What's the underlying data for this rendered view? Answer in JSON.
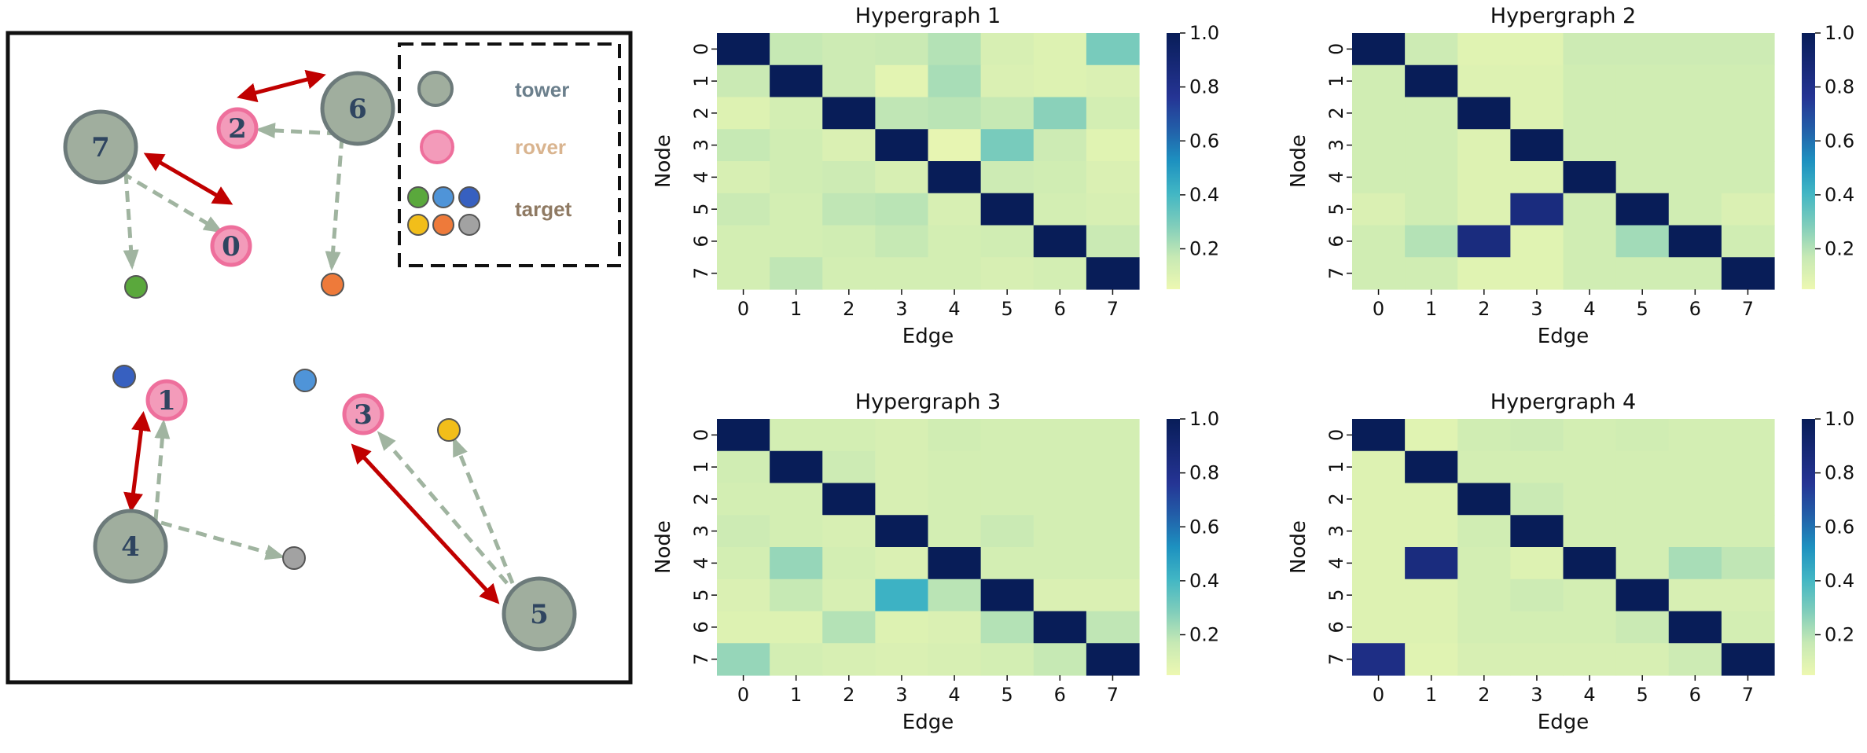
{
  "colors": {
    "tower_fill": "#a0ae9e",
    "tower_stroke": "#6c7a7a",
    "rover_fill": "#f39bba",
    "rover_stroke": "#ee6f9c",
    "communication_arrow": "#c00000",
    "observation_arrow": "#a0b4a0",
    "tower_label": "#6b7f8c",
    "rover_label": "#d9b48f",
    "target_label": "#8f7a63",
    "targets": [
      "#5aa83c",
      "#4f94d8",
      "#3760c0",
      "#f2be1a",
      "#ee7a3a",
      "#a2a2a2"
    ]
  },
  "scene": {
    "legend": {
      "tower_label": "tower",
      "rover_label": "rover",
      "target_label": "target"
    },
    "towers": [
      {
        "label": "7"
      },
      {
        "label": "6"
      },
      {
        "label": "4"
      },
      {
        "label": "5"
      }
    ],
    "rovers": [
      {
        "label": "2"
      },
      {
        "label": "0"
      },
      {
        "label": "1"
      },
      {
        "label": "3"
      }
    ],
    "targets": [
      {
        "color": "#5aa83c"
      },
      {
        "color": "#ee7a3a"
      },
      {
        "color": "#3760c0"
      },
      {
        "color": "#4f94d8"
      },
      {
        "color": "#f2be1a"
      },
      {
        "color": "#a2a2a2"
      }
    ]
  },
  "chart_data": [
    {
      "type": "heatmap",
      "title": "Hypergraph 1",
      "xlabel": "Edge",
      "ylabel": "Node",
      "x_ticks": [
        "0",
        "1",
        "2",
        "3",
        "4",
        "5",
        "6",
        "7"
      ],
      "y_ticks": [
        "0",
        "1",
        "2",
        "3",
        "4",
        "5",
        "6",
        "7"
      ],
      "colorbar_ticks": [
        "1.0",
        "0.8",
        "0.6",
        "0.4",
        "0.2"
      ],
      "colorbar_range": [
        0.05,
        1.0
      ],
      "values": [
        [
          1.0,
          0.17,
          0.15,
          0.16,
          0.2,
          0.12,
          0.1,
          0.3
        ],
        [
          0.16,
          1.0,
          0.15,
          0.08,
          0.22,
          0.11,
          0.1,
          0.11
        ],
        [
          0.1,
          0.13,
          1.0,
          0.18,
          0.19,
          0.17,
          0.27,
          0.13
        ],
        [
          0.17,
          0.14,
          0.11,
          1.0,
          0.07,
          0.3,
          0.15,
          0.09
        ],
        [
          0.12,
          0.14,
          0.15,
          0.12,
          1.0,
          0.15,
          0.14,
          0.11
        ],
        [
          0.16,
          0.13,
          0.18,
          0.19,
          0.12,
          1.0,
          0.13,
          0.12
        ],
        [
          0.13,
          0.13,
          0.14,
          0.17,
          0.13,
          0.14,
          1.0,
          0.16
        ],
        [
          0.13,
          0.18,
          0.13,
          0.13,
          0.13,
          0.12,
          0.13,
          1.0
        ]
      ]
    },
    {
      "type": "heatmap",
      "title": "Hypergraph 2",
      "xlabel": "Edge",
      "ylabel": "Node",
      "x_ticks": [
        "0",
        "1",
        "2",
        "3",
        "4",
        "5",
        "6",
        "7"
      ],
      "y_ticks": [
        "0",
        "1",
        "2",
        "3",
        "4",
        "5",
        "6",
        "7"
      ],
      "colorbar_ticks": [
        "1.0",
        "0.8",
        "0.6",
        "0.4",
        "0.2"
      ],
      "colorbar_range": [
        0.05,
        1.0
      ],
      "values": [
        [
          1.0,
          0.15,
          0.09,
          0.09,
          0.15,
          0.15,
          0.15,
          0.15
        ],
        [
          0.14,
          1.0,
          0.1,
          0.1,
          0.14,
          0.14,
          0.14,
          0.14
        ],
        [
          0.14,
          0.14,
          1.0,
          0.1,
          0.14,
          0.14,
          0.14,
          0.14
        ],
        [
          0.14,
          0.14,
          0.1,
          1.0,
          0.14,
          0.14,
          0.14,
          0.14
        ],
        [
          0.14,
          0.14,
          0.1,
          0.1,
          1.0,
          0.14,
          0.14,
          0.14
        ],
        [
          0.11,
          0.14,
          0.1,
          0.85,
          0.14,
          1.0,
          0.14,
          0.11
        ],
        [
          0.14,
          0.2,
          0.85,
          0.09,
          0.14,
          0.23,
          1.0,
          0.14
        ],
        [
          0.14,
          0.14,
          0.09,
          0.09,
          0.14,
          0.14,
          0.14,
          1.0
        ]
      ]
    },
    {
      "type": "heatmap",
      "title": "Hypergraph 3",
      "xlabel": "Edge",
      "ylabel": "Node",
      "x_ticks": [
        "0",
        "1",
        "2",
        "3",
        "4",
        "5",
        "6",
        "7"
      ],
      "y_ticks": [
        "0",
        "1",
        "2",
        "3",
        "4",
        "5",
        "6",
        "7"
      ],
      "colorbar_ticks": [
        "1.0",
        "0.8",
        "0.6",
        "0.4",
        "0.2"
      ],
      "colorbar_range": [
        0.05,
        1.0
      ],
      "values": [
        [
          1.0,
          0.13,
          0.13,
          0.12,
          0.14,
          0.13,
          0.13,
          0.13
        ],
        [
          0.14,
          1.0,
          0.15,
          0.12,
          0.13,
          0.13,
          0.13,
          0.13
        ],
        [
          0.13,
          0.13,
          1.0,
          0.12,
          0.13,
          0.13,
          0.13,
          0.13
        ],
        [
          0.15,
          0.13,
          0.12,
          1.0,
          0.13,
          0.16,
          0.13,
          0.13
        ],
        [
          0.13,
          0.25,
          0.13,
          0.11,
          1.0,
          0.13,
          0.13,
          0.13
        ],
        [
          0.11,
          0.17,
          0.12,
          0.42,
          0.19,
          1.0,
          0.11,
          0.11
        ],
        [
          0.1,
          0.1,
          0.2,
          0.1,
          0.11,
          0.2,
          1.0,
          0.18
        ],
        [
          0.25,
          0.13,
          0.12,
          0.11,
          0.12,
          0.13,
          0.17,
          1.0
        ]
      ]
    },
    {
      "type": "heatmap",
      "title": "Hypergraph 4",
      "xlabel": "Edge",
      "ylabel": "Node",
      "x_ticks": [
        "0",
        "1",
        "2",
        "3",
        "4",
        "5",
        "6",
        "7"
      ],
      "y_ticks": [
        "0",
        "1",
        "2",
        "3",
        "4",
        "5",
        "6",
        "7"
      ],
      "colorbar_ticks": [
        "1.0",
        "0.8",
        "0.6",
        "0.4",
        "0.2"
      ],
      "colorbar_range": [
        0.05,
        1.0
      ],
      "values": [
        [
          1.0,
          0.09,
          0.14,
          0.15,
          0.13,
          0.14,
          0.13,
          0.13
        ],
        [
          0.1,
          1.0,
          0.13,
          0.13,
          0.13,
          0.13,
          0.13,
          0.13
        ],
        [
          0.1,
          0.1,
          1.0,
          0.16,
          0.13,
          0.13,
          0.13,
          0.13
        ],
        [
          0.1,
          0.1,
          0.14,
          1.0,
          0.13,
          0.13,
          0.13,
          0.13
        ],
        [
          0.1,
          0.85,
          0.13,
          0.1,
          1.0,
          0.13,
          0.22,
          0.18
        ],
        [
          0.1,
          0.1,
          0.13,
          0.15,
          0.13,
          1.0,
          0.12,
          0.12
        ],
        [
          0.1,
          0.1,
          0.13,
          0.13,
          0.13,
          0.16,
          1.0,
          0.13
        ],
        [
          0.82,
          0.09,
          0.12,
          0.12,
          0.12,
          0.12,
          0.15,
          1.0
        ]
      ]
    }
  ]
}
